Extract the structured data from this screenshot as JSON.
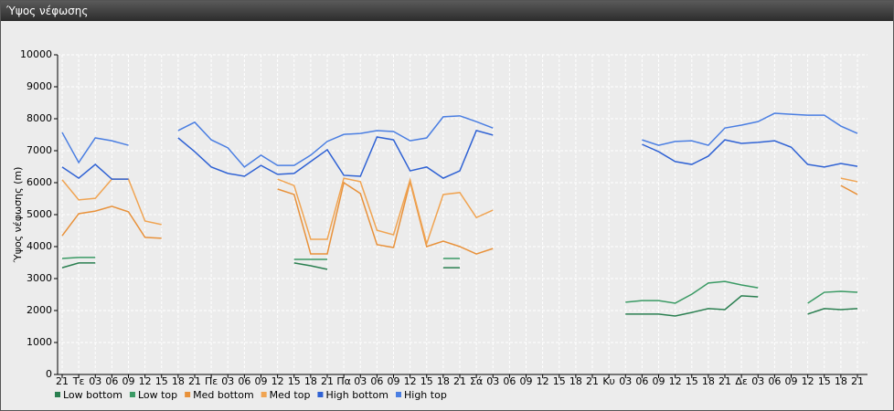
{
  "window_title": "Ύψος νέφωσης",
  "chart_data": {
    "type": "line",
    "y_label": "Ύψος νέφωσης (m)",
    "categories": [
      "21",
      "Τε",
      "03",
      "06",
      "09",
      "12",
      "15",
      "18",
      "21",
      "Πε",
      "03",
      "06",
      "09",
      "12",
      "15",
      "18",
      "21",
      "Πα",
      "03",
      "06",
      "09",
      "12",
      "15",
      "18",
      "21",
      "Σά",
      "03",
      "06",
      "09",
      "12",
      "15",
      "18",
      "21",
      "Κυ",
      "03",
      "06",
      "09",
      "12",
      "15",
      "18",
      "21",
      "Δε",
      "03",
      "06",
      "09",
      "12",
      "15",
      "18",
      "21"
    ],
    "ylim": [
      0,
      10000
    ],
    "yticks": [
      0,
      1000,
      2000,
      3000,
      4000,
      5000,
      6000,
      7000,
      8000,
      9000,
      10000
    ],
    "grid": true,
    "legend": "bottom-left",
    "series": [
      {
        "name": "Low bottom",
        "color": "#2a7f50",
        "values": [
          3340,
          3490,
          3490,
          null,
          null,
          null,
          null,
          null,
          null,
          null,
          null,
          null,
          null,
          null,
          3490,
          3400,
          3290,
          null,
          null,
          null,
          null,
          null,
          null,
          3340,
          3340,
          null,
          null,
          null,
          null,
          null,
          null,
          null,
          null,
          null,
          1890,
          1890,
          1890,
          1830,
          1940,
          2060,
          2030,
          2460,
          2430,
          null,
          null,
          1890,
          2060,
          2030,
          2060
        ]
      },
      {
        "name": "Low top",
        "color": "#3a9a64",
        "values": [
          3630,
          3660,
          3660,
          null,
          null,
          null,
          null,
          null,
          null,
          null,
          null,
          null,
          null,
          null,
          3600,
          3600,
          3600,
          null,
          null,
          null,
          null,
          null,
          null,
          3630,
          3630,
          null,
          null,
          null,
          null,
          null,
          null,
          null,
          null,
          null,
          2260,
          2310,
          2310,
          2230,
          2510,
          2860,
          2910,
          2800,
          2710,
          null,
          null,
          2230,
          2570,
          2600,
          2570
        ]
      },
      {
        "name": "Med bottom",
        "color": "#e8913a",
        "values": [
          4340,
          5030,
          5110,
          5260,
          5090,
          4290,
          4260,
          null,
          null,
          null,
          null,
          null,
          null,
          5800,
          5630,
          3770,
          3770,
          6000,
          5660,
          4060,
          3970,
          6030,
          4000,
          4170,
          4000,
          3770,
          3940,
          null,
          null,
          null,
          null,
          null,
          null,
          null,
          null,
          null,
          null,
          null,
          null,
          null,
          null,
          null,
          null,
          null,
          null,
          null,
          null,
          5910,
          5630
        ]
      },
      {
        "name": "Med top",
        "color": "#f0a452",
        "values": [
          6090,
          5460,
          5510,
          6110,
          6110,
          4800,
          4690,
          null,
          null,
          null,
          null,
          null,
          null,
          6110,
          5910,
          4230,
          4230,
          6140,
          6030,
          4510,
          4370,
          6090,
          4090,
          5630,
          5690,
          4910,
          5140,
          null,
          null,
          null,
          null,
          null,
          null,
          null,
          null,
          null,
          null,
          null,
          null,
          null,
          null,
          null,
          null,
          null,
          null,
          null,
          null,
          6140,
          6030
        ]
      },
      {
        "name": "High bottom",
        "color": "#2f62d4",
        "values": [
          6490,
          6140,
          6570,
          6110,
          6110,
          null,
          null,
          7400,
          6970,
          6490,
          6290,
          6200,
          6540,
          6260,
          6290,
          6660,
          7030,
          6230,
          6200,
          7430,
          7340,
          6370,
          6490,
          6140,
          6370,
          7630,
          7490,
          null,
          null,
          null,
          null,
          null,
          null,
          null,
          null,
          7200,
          6970,
          6660,
          6570,
          6830,
          7340,
          7230,
          7260,
          7310,
          7110,
          6570,
          6490,
          6600,
          6510
        ]
      },
      {
        "name": "High top",
        "color": "#4a7ee2",
        "values": [
          7570,
          6630,
          7400,
          7310,
          7170,
          null,
          null,
          7630,
          7890,
          7340,
          7090,
          6490,
          6860,
          6540,
          6540,
          6860,
          7290,
          7510,
          7540,
          7630,
          7600,
          7310,
          7400,
          8060,
          8090,
          7910,
          7710,
          null,
          null,
          null,
          null,
          null,
          null,
          null,
          null,
          7340,
          7170,
          7290,
          7310,
          7170,
          7710,
          7800,
          7910,
          8170,
          8140,
          8110,
          8110,
          7770,
          7540
        ]
      }
    ]
  }
}
